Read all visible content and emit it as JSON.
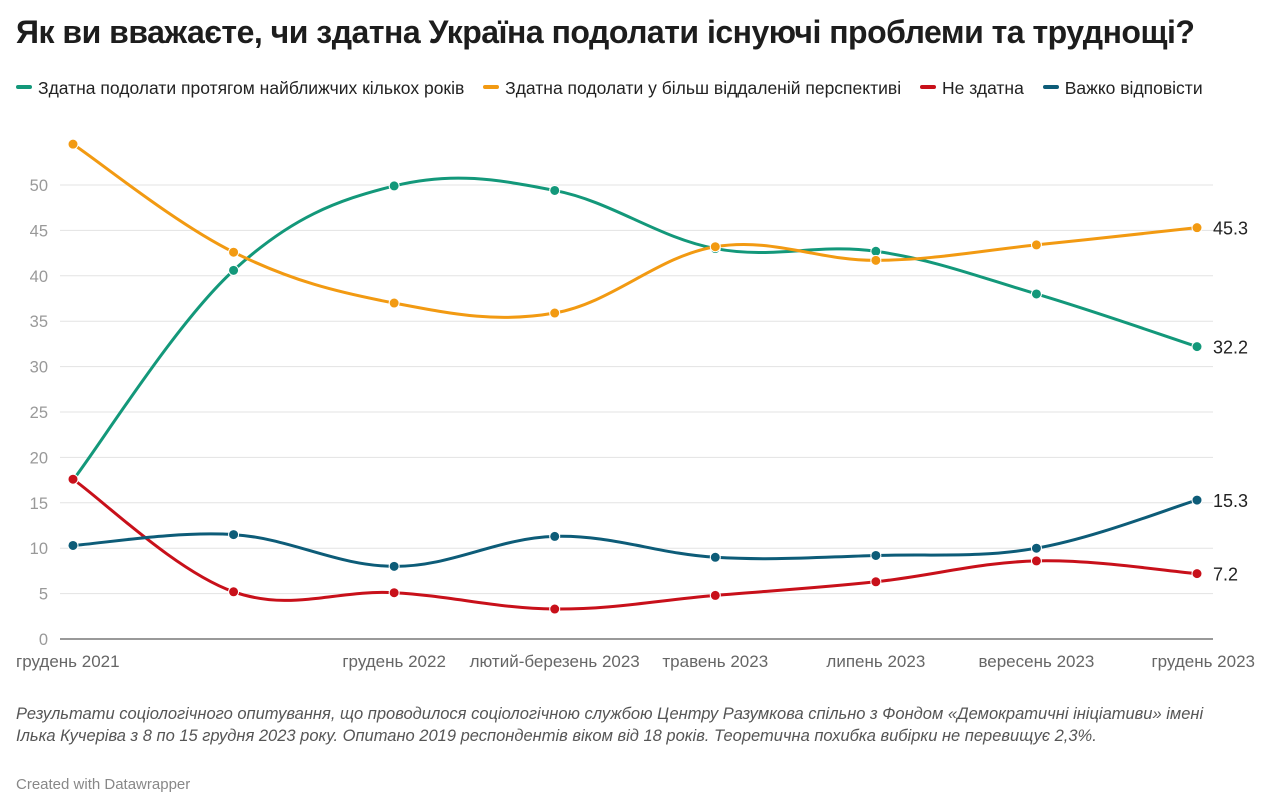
{
  "chart_data": {
    "type": "line",
    "title": "Як ви вважаєте, чи здатна Україна подолати існуючі проблеми та труднощі?",
    "categories": [
      "грудень 2021",
      "",
      "грудень 2022",
      "лютий-березень 2023",
      "травень 2023",
      "липень 2023",
      "вересень 2023",
      "грудень 2023"
    ],
    "ylim": [
      0,
      55
    ],
    "yticks": [
      0,
      5,
      10,
      15,
      20,
      25,
      30,
      35,
      40,
      45,
      50
    ],
    "grid": true,
    "legend": "top",
    "series": [
      {
        "name": "Здатна подолати протягом найближчих кількох років",
        "color": "#13987a",
        "values": [
          17.5,
          40.6,
          49.9,
          49.4,
          43.0,
          42.7,
          38.0,
          32.2
        ],
        "end_label": "32.2"
      },
      {
        "name": "Здатна подолати у більш віддаленій перспективі",
        "color": "#f29a12",
        "values": [
          54.5,
          42.6,
          37.0,
          35.9,
          43.2,
          41.7,
          43.4,
          45.3
        ],
        "end_label": "45.3"
      },
      {
        "name": "Не здатна",
        "color": "#c8101a",
        "values": [
          17.6,
          5.2,
          5.1,
          3.3,
          4.8,
          6.3,
          8.6,
          7.2
        ],
        "end_label": "7.2"
      },
      {
        "name": "Важко відповісти",
        "color": "#0d5c78",
        "values": [
          10.3,
          11.5,
          8.0,
          11.3,
          9.0,
          9.2,
          10.0,
          15.3
        ],
        "end_label": "15.3"
      }
    ]
  },
  "notes": "Результати соціологічного опитування, що проводилося соціологічною службою Центру Разумкова спільно з Фондом «Демократичні ініціативи» імені Ілька Кучеріва з 8 по 15 грудня 2023 року. Опитано 2019 респондентів віком від 18 років. Теоретична похибка вибірки не перевищує 2,3%.",
  "credit": "Created with Datawrapper"
}
